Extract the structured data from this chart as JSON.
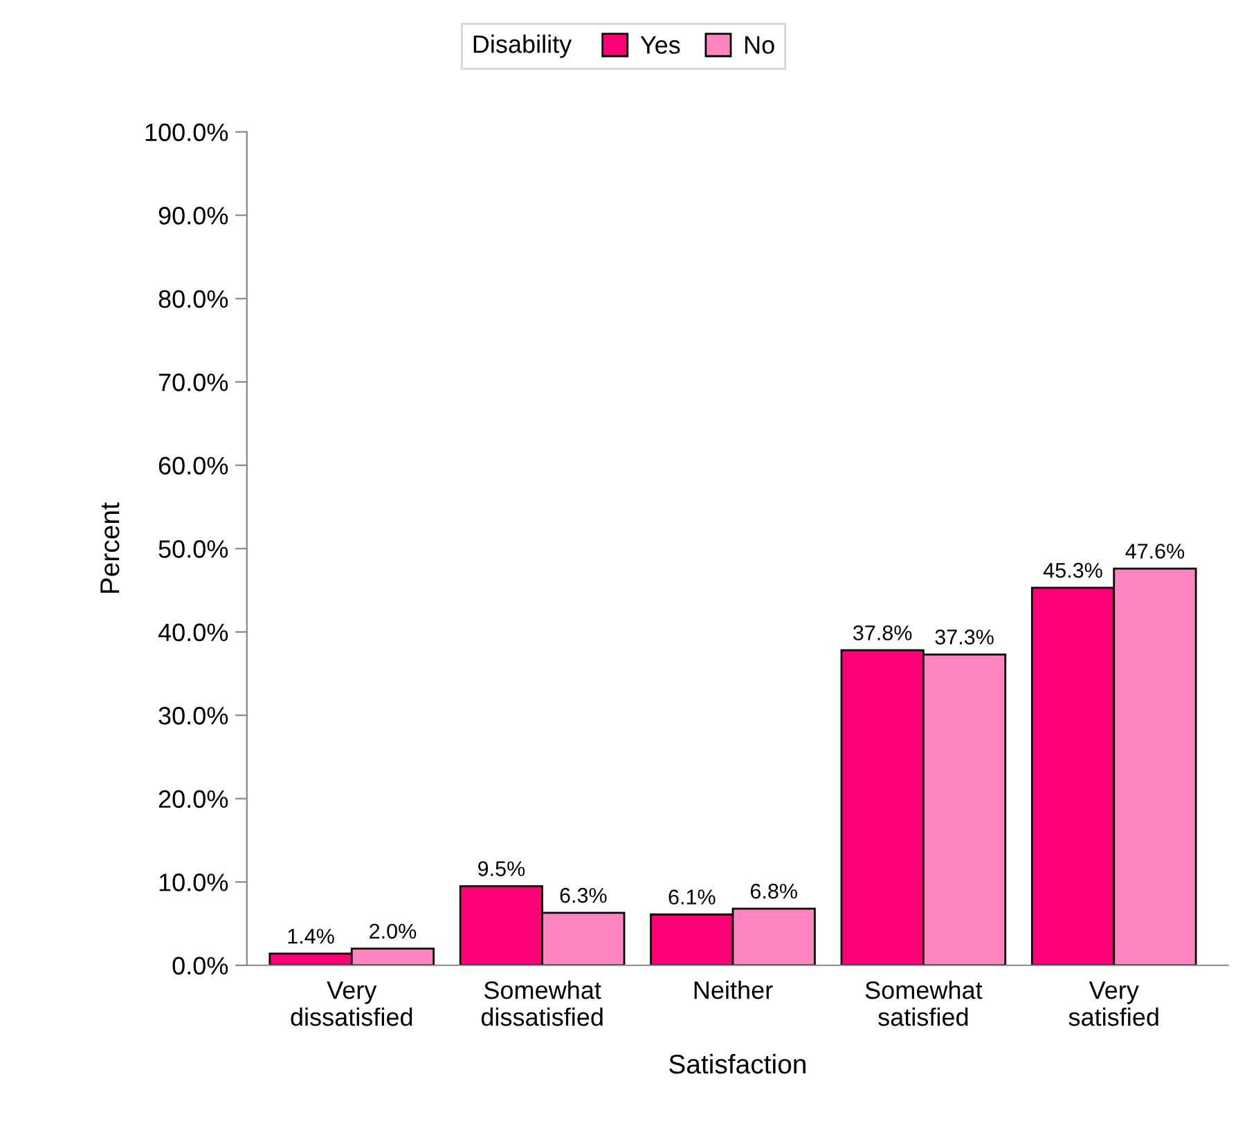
{
  "chart_data": {
    "type": "bar",
    "xlabel": "Satisfaction",
    "ylabel": "Percent",
    "legend_title": "Disability",
    "legend": "top",
    "categories": [
      "Very\ndissatisfied",
      "Somewhat\ndissatisfied",
      "Neither",
      "Somewhat\nsatisfied",
      "Very\nsatisfied"
    ],
    "series": [
      {
        "name": "Yes",
        "color": "#ff0077",
        "values": [
          1.4,
          9.5,
          6.1,
          37.8,
          45.3
        ],
        "value_labels": [
          "1.4%",
          "9.5%",
          "6.1%",
          "37.8%",
          "45.3%"
        ]
      },
      {
        "name": "No",
        "color": "#ff85c0",
        "values": [
          2.0,
          6.3,
          6.8,
          37.3,
          47.6
        ],
        "value_labels": [
          "2.0%",
          "6.3%",
          "6.8%",
          "37.3%",
          "47.6%"
        ]
      }
    ],
    "ylim": [
      0,
      100
    ],
    "yticks": [
      {
        "value": 0,
        "label": "0.0%"
      },
      {
        "value": 10,
        "label": "10.0%"
      },
      {
        "value": 20,
        "label": "20.0%"
      },
      {
        "value": 30,
        "label": "30.0%"
      },
      {
        "value": 40,
        "label": "40.0%"
      },
      {
        "value": 50,
        "label": "50.0%"
      },
      {
        "value": 60,
        "label": "60.0%"
      },
      {
        "value": 70,
        "label": "70.0%"
      },
      {
        "value": 80,
        "label": "80.0%"
      },
      {
        "value": 90,
        "label": "90.0%"
      },
      {
        "value": 100,
        "label": "100.0%"
      }
    ],
    "grid": false
  }
}
